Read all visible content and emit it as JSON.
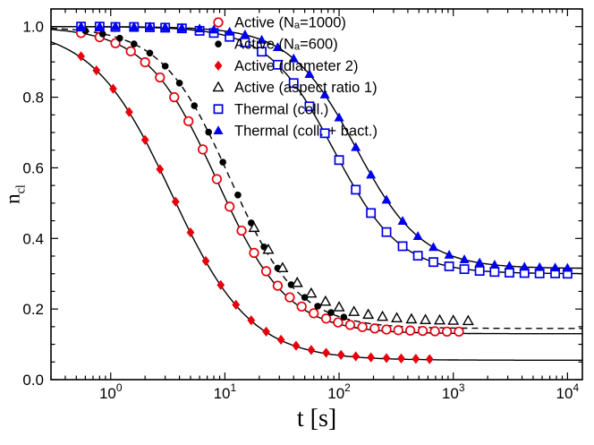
{
  "chart_data": {
    "type": "scatter",
    "xscale": "log",
    "xlabel": "t [s]",
    "ylabel_main": "n",
    "ylabel_sub": "cl",
    "xlim": [
      0.3,
      13500
    ],
    "ylim": [
      0.0,
      1.05
    ],
    "x_major_ticks": [
      1,
      10,
      100,
      1000,
      10000
    ],
    "y_major_ticks": [
      0.0,
      0.2,
      0.4,
      0.6,
      0.8,
      1.0
    ],
    "y_minor_step": 0.05,
    "grid": false,
    "legend_position": "top-right",
    "colors": {
      "red": "#e8000b",
      "black": "#000000",
      "blue": "#0000ee"
    },
    "series": [
      {
        "label": "Active (Nₐ=1000)",
        "marker": "circle-open",
        "color": "#e8000b",
        "size": 4.8,
        "points": [
          [
            0.55,
            0.982
          ],
          [
            0.8,
            0.97
          ],
          [
            1.1,
            0.953
          ],
          [
            1.5,
            0.93
          ],
          [
            2.0,
            0.899
          ],
          [
            2.7,
            0.856
          ],
          [
            3.6,
            0.8
          ],
          [
            4.8,
            0.732
          ],
          [
            6.4,
            0.652
          ],
          [
            8.5,
            0.568
          ],
          [
            11,
            0.49
          ],
          [
            14,
            0.422
          ],
          [
            18,
            0.359
          ],
          [
            23,
            0.307
          ],
          [
            29,
            0.266
          ],
          [
            37,
            0.233
          ],
          [
            47,
            0.207
          ],
          [
            60,
            0.188
          ],
          [
            77,
            0.173
          ],
          [
            98,
            0.162
          ],
          [
            125,
            0.155
          ],
          [
            160,
            0.149
          ],
          [
            205,
            0.145
          ],
          [
            260,
            0.142
          ],
          [
            330,
            0.14
          ],
          [
            420,
            0.139
          ],
          [
            540,
            0.138
          ],
          [
            690,
            0.137
          ],
          [
            880,
            0.136
          ],
          [
            1120,
            0.136
          ]
        ]
      },
      {
        "label": "Active (Nₐ=600)",
        "marker": "circle-fill",
        "color": "#000000",
        "size": 3.8,
        "points": [
          [
            0.6,
            0.988
          ],
          [
            0.85,
            0.979
          ],
          [
            1.2,
            0.967
          ],
          [
            1.6,
            0.951
          ],
          [
            2.2,
            0.925
          ],
          [
            3.0,
            0.888
          ],
          [
            4.0,
            0.84
          ],
          [
            5.4,
            0.776
          ],
          [
            7.2,
            0.701
          ],
          [
            9.6,
            0.616
          ],
          [
            13,
            0.523
          ],
          [
            17,
            0.444
          ],
          [
            22,
            0.376
          ],
          [
            29,
            0.316
          ],
          [
            38,
            0.269
          ],
          [
            50,
            0.233
          ],
          [
            65,
            0.208
          ],
          [
            85,
            0.19
          ],
          [
            110,
            0.177
          ]
        ]
      },
      {
        "label": "Active (diameter 2)",
        "marker": "diamond-fill",
        "color": "#e8000b",
        "size": 5.6,
        "points": [
          [
            0.55,
            0.916
          ],
          [
            0.75,
            0.876
          ],
          [
            1.05,
            0.824
          ],
          [
            1.45,
            0.758
          ],
          [
            2.0,
            0.679
          ],
          [
            2.7,
            0.596
          ],
          [
            3.7,
            0.504
          ],
          [
            5.0,
            0.417
          ],
          [
            6.8,
            0.336
          ],
          [
            9.2,
            0.268
          ],
          [
            12.5,
            0.212
          ],
          [
            17,
            0.168
          ],
          [
            23,
            0.136
          ],
          [
            31,
            0.113
          ],
          [
            42,
            0.096
          ],
          [
            57,
            0.084
          ],
          [
            77,
            0.076
          ],
          [
            104,
            0.07
          ],
          [
            140,
            0.066
          ],
          [
            190,
            0.063
          ],
          [
            260,
            0.061
          ],
          [
            350,
            0.06
          ],
          [
            470,
            0.059
          ],
          [
            620,
            0.058
          ]
        ]
      },
      {
        "label": "Active (aspect ratio 1)",
        "marker": "triangle-open",
        "color": "#000000",
        "size": 5.6,
        "points": [
          [
            18,
            0.43
          ],
          [
            24,
            0.368
          ],
          [
            32,
            0.316
          ],
          [
            43,
            0.274
          ],
          [
            57,
            0.244
          ],
          [
            76,
            0.221
          ],
          [
            100,
            0.205
          ],
          [
            135,
            0.192
          ],
          [
            180,
            0.184
          ],
          [
            240,
            0.178
          ],
          [
            320,
            0.174
          ],
          [
            430,
            0.171
          ],
          [
            570,
            0.169
          ],
          [
            760,
            0.168
          ],
          [
            1000,
            0.167
          ],
          [
            1350,
            0.166
          ]
        ]
      },
      {
        "label": "Thermal (coll.)",
        "marker": "square-open",
        "color": "#0000ee",
        "size": 4.6,
        "points": [
          [
            0.55,
            1.0
          ],
          [
            0.8,
            1.0
          ],
          [
            1.1,
            0.999
          ],
          [
            1.6,
            0.999
          ],
          [
            2.2,
            0.998
          ],
          [
            3.0,
            0.997
          ],
          [
            4.2,
            0.995
          ],
          [
            6.0,
            0.988
          ],
          [
            8.0,
            0.982
          ],
          [
            11,
            0.971
          ],
          [
            15,
            0.955
          ],
          [
            21,
            0.929
          ],
          [
            29,
            0.892
          ],
          [
            40,
            0.84
          ],
          [
            55,
            0.774
          ],
          [
            75,
            0.698
          ],
          [
            100,
            0.622
          ],
          [
            140,
            0.538
          ],
          [
            190,
            0.472
          ],
          [
            260,
            0.418
          ],
          [
            360,
            0.378
          ],
          [
            490,
            0.351
          ],
          [
            670,
            0.333
          ],
          [
            920,
            0.321
          ],
          [
            1250,
            0.313
          ],
          [
            1700,
            0.308
          ],
          [
            2300,
            0.305
          ],
          [
            3100,
            0.303
          ],
          [
            4200,
            0.302
          ],
          [
            5700,
            0.301
          ],
          [
            7800,
            0.301
          ],
          [
            10000,
            0.3
          ]
        ]
      },
      {
        "label": "Thermal (coll. + bact.)",
        "marker": "triangle-fill",
        "color": "#0000ee",
        "size": 5.8,
        "points": [
          [
            0.55,
            1.0
          ],
          [
            0.8,
            1.0
          ],
          [
            1.1,
            1.0
          ],
          [
            1.6,
            0.999
          ],
          [
            2.2,
            0.999
          ],
          [
            3.0,
            0.998
          ],
          [
            4.2,
            0.996
          ],
          [
            6.0,
            0.994
          ],
          [
            8.0,
            0.991
          ],
          [
            11,
            0.985
          ],
          [
            15,
            0.977
          ],
          [
            21,
            0.962
          ],
          [
            29,
            0.941
          ],
          [
            40,
            0.909
          ],
          [
            55,
            0.865
          ],
          [
            75,
            0.807
          ],
          [
            100,
            0.742
          ],
          [
            140,
            0.658
          ],
          [
            190,
            0.58
          ],
          [
            260,
            0.509
          ],
          [
            360,
            0.449
          ],
          [
            490,
            0.406
          ],
          [
            670,
            0.375
          ],
          [
            920,
            0.353
          ],
          [
            1250,
            0.34
          ],
          [
            1700,
            0.331
          ],
          [
            2300,
            0.325
          ],
          [
            3100,
            0.322
          ],
          [
            4200,
            0.319
          ],
          [
            5700,
            0.318
          ],
          [
            7800,
            0.317
          ],
          [
            10000,
            0.316
          ]
        ]
      }
    ],
    "fits": [
      {
        "series": "Active (Nₐ=1000)",
        "n_inf": 0.13,
        "amp": 0.87,
        "t_half": 8.5,
        "exponent": 1.4,
        "style": "solid",
        "t_range": [
          0.3,
          13500
        ]
      },
      {
        "series": "Active (Nₐ=600)",
        "n_inf": 0.145,
        "amp": 0.855,
        "t_half": 11,
        "exponent": 1.45,
        "style": "dashed",
        "t_range": [
          0.3,
          13500
        ]
      },
      {
        "series": "Active (diameter 2)",
        "n_inf": 0.055,
        "amp": 0.945,
        "t_half": 3.4,
        "exponent": 1.25,
        "style": "solid",
        "t_range": [
          0.3,
          13500
        ]
      },
      {
        "series": "Thermal (coll.)",
        "n_inf": 0.3,
        "amp": 0.7,
        "t_half": 90,
        "exponent": 1.5,
        "style": "solid",
        "t_range": [
          0.3,
          13500
        ]
      },
      {
        "series": "Thermal (coll. + bact.)",
        "n_inf": 0.315,
        "amp": 0.685,
        "t_half": 140,
        "exponent": 1.5,
        "style": "solid",
        "t_range": [
          0.3,
          13500
        ]
      }
    ]
  }
}
